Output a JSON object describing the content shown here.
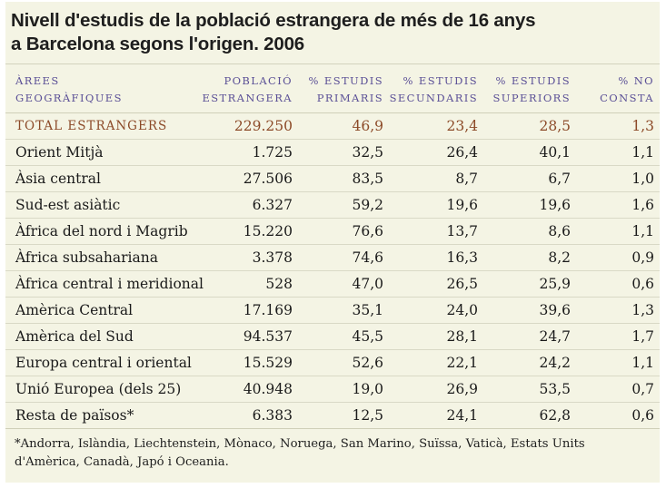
{
  "title": {
    "line1": "Nivell d'estudis de la població estrangera de més de 16 anys",
    "line2": "a Barcelona segons l'origen. 2006"
  },
  "columns": [
    [
      "ÀREES",
      "GEOGRÀFIQUES"
    ],
    [
      "POBLACIÓ",
      "ESTRANGERA"
    ],
    [
      "% ESTUDIS",
      "PRIMARIS"
    ],
    [
      "% ESTUDIS",
      "SECUNDARIS"
    ],
    [
      "% ESTUDIS",
      "SUPERIORS"
    ],
    [
      "% NO",
      "CONSTA"
    ]
  ],
  "total": [
    "TOTAL ESTRANGERS",
    "229.250",
    "46,9",
    "23,4",
    "28,5",
    "1,3"
  ],
  "rows": [
    [
      "Orient Mitjà",
      "1.725",
      "32,5",
      "26,4",
      "40,1",
      "1,1"
    ],
    [
      "Àsia central",
      "27.506",
      "83,5",
      "8,7",
      "6,7",
      "1,0"
    ],
    [
      "Sud-est asiàtic",
      "6.327",
      "59,2",
      "19,6",
      "19,6",
      "1,6"
    ],
    [
      "Àfrica del nord i Magrib",
      "15.220",
      "76,6",
      "13,7",
      "8,6",
      "1,1"
    ],
    [
      "Àfrica subsahariana",
      "3.378",
      "74,6",
      "16,3",
      "8,2",
      "0,9"
    ],
    [
      "Àfrica central i meridional",
      "528",
      "47,0",
      "26,5",
      "25,9",
      "0,6"
    ],
    [
      "Amèrica Central",
      "17.169",
      "35,1",
      "24,0",
      "39,6",
      "1,3"
    ],
    [
      "Amèrica del Sud",
      "94.537",
      "45,5",
      "28,1",
      "24,7",
      "1,7"
    ],
    [
      "Europa central i oriental",
      "15.529",
      "52,6",
      "22,1",
      "24,2",
      "1,1"
    ],
    [
      "Unió Europea (dels 25)",
      "40.948",
      "19,0",
      "26,9",
      "53,5",
      "0,7"
    ],
    [
      "Resta de països*",
      "6.383",
      "12,5",
      "24,1",
      "62,8",
      "0,6"
    ]
  ],
  "footnote": {
    "line1": "*Andorra, Islàndia, Liechtenstein, Mònaco, Noruega, San Marino, Suïssa, Vaticà, Estats Units",
    "line2": "d'Amèrica, Canadà, Japó i Oceania."
  },
  "colors": {
    "panel_background": "#f4f4e4",
    "header_text": "#5a4f96",
    "total_row_text": "#8c4a28",
    "body_text": "#1a1a1a"
  }
}
